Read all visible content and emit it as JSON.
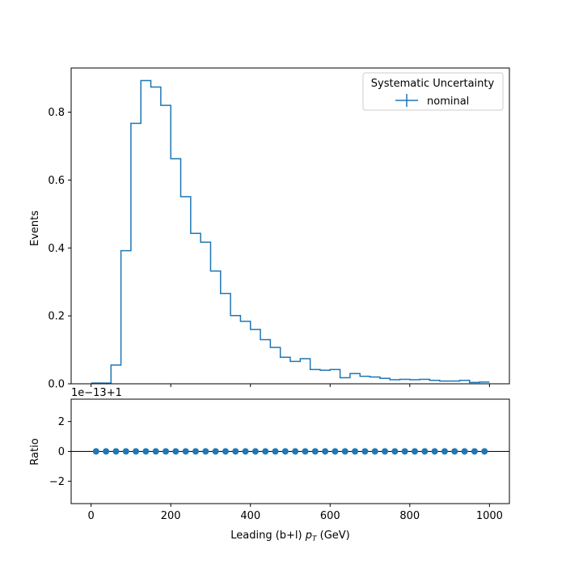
{
  "chart_data": [
    {
      "type": "line",
      "panel": "main",
      "drawstyle": "steps-post",
      "bin_edges": [
        0,
        25,
        50,
        75,
        100,
        125,
        150,
        175,
        200,
        225,
        250,
        275,
        300,
        325,
        350,
        375,
        400,
        425,
        450,
        475,
        500,
        525,
        550,
        575,
        600,
        625,
        650,
        675,
        700,
        725,
        750,
        775,
        800,
        825,
        850,
        875,
        900,
        925,
        950,
        975,
        1000
      ],
      "series": [
        {
          "name": "nominal",
          "color": "#1f77b4",
          "values": [
            0.002,
            0.002,
            0.055,
            0.392,
            0.767,
            0.893,
            0.874,
            0.82,
            0.663,
            0.551,
            0.443,
            0.417,
            0.332,
            0.266,
            0.201,
            0.184,
            0.16,
            0.13,
            0.107,
            0.078,
            0.066,
            0.074,
            0.042,
            0.04,
            0.042,
            0.018,
            0.03,
            0.022,
            0.02,
            0.016,
            0.012,
            0.013,
            0.012,
            0.013,
            0.01,
            0.008,
            0.008,
            0.01,
            0.004,
            0.005
          ]
        }
      ],
      "ylabel": "Events",
      "ylim": [
        0,
        0.93
      ],
      "xlim": [
        -50,
        1050
      ],
      "yticks": [
        0.0,
        0.2,
        0.4,
        0.6,
        0.8
      ],
      "ytick_labels": [
        "0.0",
        "0.2",
        "0.4",
        "0.6",
        "0.8"
      ],
      "legend": {
        "title": "Systematic Uncertainty",
        "placement": "top-right"
      },
      "grid": false
    },
    {
      "type": "scatter",
      "panel": "ratio",
      "x": [
        12.5,
        37.5,
        62.5,
        87.5,
        112.5,
        137.5,
        162.5,
        187.5,
        212.5,
        237.5,
        262.5,
        287.5,
        312.5,
        337.5,
        362.5,
        387.5,
        412.5,
        437.5,
        462.5,
        487.5,
        512.5,
        537.5,
        562.5,
        587.5,
        612.5,
        637.5,
        662.5,
        687.5,
        712.5,
        737.5,
        762.5,
        787.5,
        812.5,
        837.5,
        862.5,
        887.5,
        912.5,
        937.5,
        962.5,
        987.5
      ],
      "y": [
        0,
        0,
        0,
        0,
        0,
        0,
        0,
        0,
        0,
        0,
        0,
        0,
        0,
        0,
        0,
        0,
        0,
        0,
        0,
        0,
        0,
        0,
        0,
        0,
        0,
        0,
        0,
        0,
        0,
        0,
        0,
        0,
        0,
        0,
        0,
        0,
        0,
        0,
        0,
        0
      ],
      "color": "#1f77b4",
      "reference_line": 0,
      "ylabel": "Ratio",
      "offset_text": "1e−13+1",
      "ylim": [
        -3.5,
        3.5
      ],
      "yticks": [
        -2,
        0,
        2
      ],
      "ytick_labels": [
        "−2",
        "0",
        "2"
      ],
      "xlim": [
        -50,
        1050
      ],
      "xticks": [
        0,
        200,
        400,
        600,
        800,
        1000
      ],
      "xtick_labels": [
        "0",
        "200",
        "400",
        "600",
        "800",
        "1000"
      ],
      "xlabel": "Leading (b+l) pT (GeV)"
    }
  ]
}
